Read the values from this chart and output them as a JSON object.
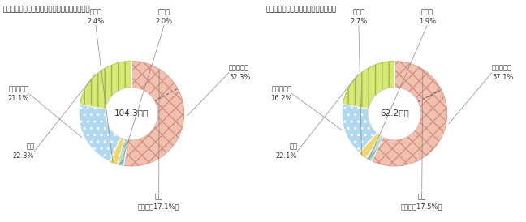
{
  "chart1": {
    "title": "【放送コンテンツの海外輸出額（輸出先別）】",
    "center_text": "104.3億円",
    "asia_pct": 52.3,
    "korea_pct": 17.1,
    "hokubei_pct": 22.3,
    "europe_pct": 21.1,
    "chubei_pct": 2.4,
    "sonota_pct": 2.0,
    "label_asia": "アジア合計\n52.3%",
    "label_sonota": "その他\n2.0%",
    "label_chubei": "中南米\n2.4%",
    "label_europe": "ヨーロッパ\n21.1%",
    "label_hokubei": "北米\n22.3%",
    "label_korea": "韓国\n（全体の17.1%）"
  },
  "chart2": {
    "title": "【番組放送権の輸出額（輸出先別）】",
    "center_text": "62.2億円",
    "asia_pct": 57.1,
    "korea_pct": 17.5,
    "hokubei_pct": 22.1,
    "europe_pct": 16.2,
    "chubei_pct": 2.7,
    "sonota_pct": 1.9,
    "label_asia": "アジア合計\n57.1%",
    "label_sonota": "その他\n1.9%",
    "label_chubei": "中南米\n2.7%",
    "label_europe": "ヨーロッパ\n16.2%",
    "label_hokubei": "北米\n22.1%",
    "label_korea": "韓国\n（全体の17.5%）"
  },
  "asia_face": "#f0c0b0",
  "asia_hatch_color": "#d89080",
  "hokubei_face": "#d8e878",
  "hokubei_hatch_color": "#a0b840",
  "europe_face": "#b0d8f0",
  "europe_hatch_color": "#ffffff",
  "chubei_face": "#f0d870",
  "chubei_hatch_color": "#ccaa30",
  "sonota_face": "#b8dcd0",
  "sonota_hatch_color": "#88aaaa",
  "text_dark": "#333333",
  "line_color": "#888888",
  "bg": "#ffffff"
}
